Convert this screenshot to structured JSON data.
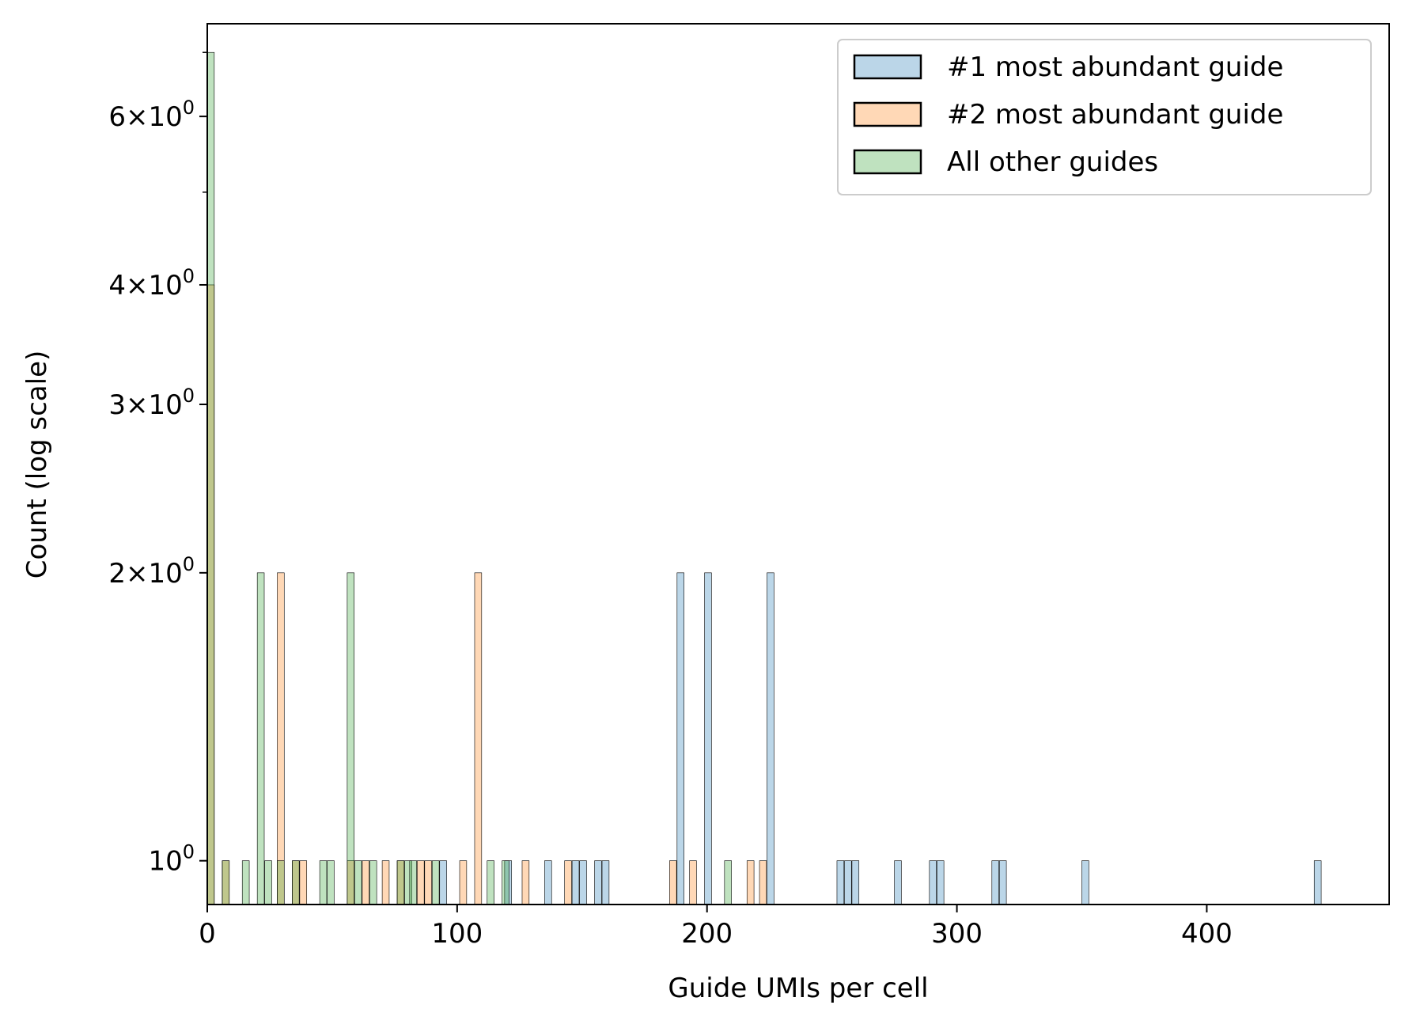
{
  "chart_data": {
    "type": "bar",
    "subtype": "histogram",
    "title": "",
    "xlabel": "Guide UMIs per cell",
    "ylabel": "Count (log scale)",
    "xlim": [
      0,
      473
    ],
    "ylim": [
      0.9,
      7.5
    ],
    "yscale": "log",
    "bin_width": 2.8,
    "grid": false,
    "legend_position": "top-right",
    "x_ticks": [
      {
        "value": 0,
        "label": "0"
      },
      {
        "value": 100,
        "label": "100"
      },
      {
        "value": 200,
        "label": "200"
      },
      {
        "value": 300,
        "label": "300"
      },
      {
        "value": 400,
        "label": "400"
      }
    ],
    "y_ticks": [
      {
        "value": 1,
        "mantissa": "",
        "exponent": "0"
      },
      {
        "value": 2,
        "mantissa": "2",
        "exponent": "0"
      },
      {
        "value": 3,
        "mantissa": "3",
        "exponent": "0"
      },
      {
        "value": 4,
        "mantissa": "4",
        "exponent": "0"
      },
      {
        "value": 6,
        "mantissa": "6",
        "exponent": "0"
      }
    ],
    "series": [
      {
        "name": "#1 most abundant guide",
        "color": "#1f77b4",
        "bins": [
          {
            "x": 93,
            "count": 1
          },
          {
            "x": 119,
            "count": 1
          },
          {
            "x": 135,
            "count": 1
          },
          {
            "x": 146,
            "count": 1
          },
          {
            "x": 149,
            "count": 1
          },
          {
            "x": 155,
            "count": 1
          },
          {
            "x": 158,
            "count": 1
          },
          {
            "x": 188,
            "count": 2
          },
          {
            "x": 199,
            "count": 2
          },
          {
            "x": 224,
            "count": 2
          },
          {
            "x": 252,
            "count": 1
          },
          {
            "x": 255,
            "count": 1
          },
          {
            "x": 258,
            "count": 1
          },
          {
            "x": 275,
            "count": 1
          },
          {
            "x": 289,
            "count": 1
          },
          {
            "x": 292,
            "count": 1
          },
          {
            "x": 314,
            "count": 1
          },
          {
            "x": 317,
            "count": 1
          },
          {
            "x": 350,
            "count": 1
          },
          {
            "x": 443,
            "count": 1
          }
        ]
      },
      {
        "name": "#2 most abundant guide",
        "color": "#ff7f0e",
        "bins": [
          {
            "x": 0,
            "count": 4
          },
          {
            "x": 6,
            "count": 1
          },
          {
            "x": 28,
            "count": 2
          },
          {
            "x": 34,
            "count": 1
          },
          {
            "x": 37,
            "count": 1
          },
          {
            "x": 56,
            "count": 1
          },
          {
            "x": 62,
            "count": 1
          },
          {
            "x": 70,
            "count": 1
          },
          {
            "x": 76,
            "count": 1
          },
          {
            "x": 84,
            "count": 1
          },
          {
            "x": 87,
            "count": 1
          },
          {
            "x": 101,
            "count": 1
          },
          {
            "x": 107,
            "count": 2
          },
          {
            "x": 126,
            "count": 1
          },
          {
            "x": 143,
            "count": 1
          },
          {
            "x": 185,
            "count": 1
          },
          {
            "x": 193,
            "count": 1
          },
          {
            "x": 216,
            "count": 1
          },
          {
            "x": 221,
            "count": 1
          }
        ]
      },
      {
        "name": "All other guides",
        "color": "#2ca02c",
        "bins": [
          {
            "x": 0,
            "count": 7
          },
          {
            "x": 6,
            "count": 1
          },
          {
            "x": 14,
            "count": 1
          },
          {
            "x": 20,
            "count": 2
          },
          {
            "x": 23,
            "count": 1
          },
          {
            "x": 28,
            "count": 1
          },
          {
            "x": 34,
            "count": 1
          },
          {
            "x": 45,
            "count": 1
          },
          {
            "x": 48,
            "count": 1
          },
          {
            "x": 56,
            "count": 2
          },
          {
            "x": 59,
            "count": 1
          },
          {
            "x": 65,
            "count": 1
          },
          {
            "x": 76,
            "count": 1
          },
          {
            "x": 79,
            "count": 1
          },
          {
            "x": 81,
            "count": 1
          },
          {
            "x": 90,
            "count": 1
          },
          {
            "x": 112,
            "count": 1
          },
          {
            "x": 118,
            "count": 1
          },
          {
            "x": 207,
            "count": 1
          }
        ]
      }
    ]
  }
}
